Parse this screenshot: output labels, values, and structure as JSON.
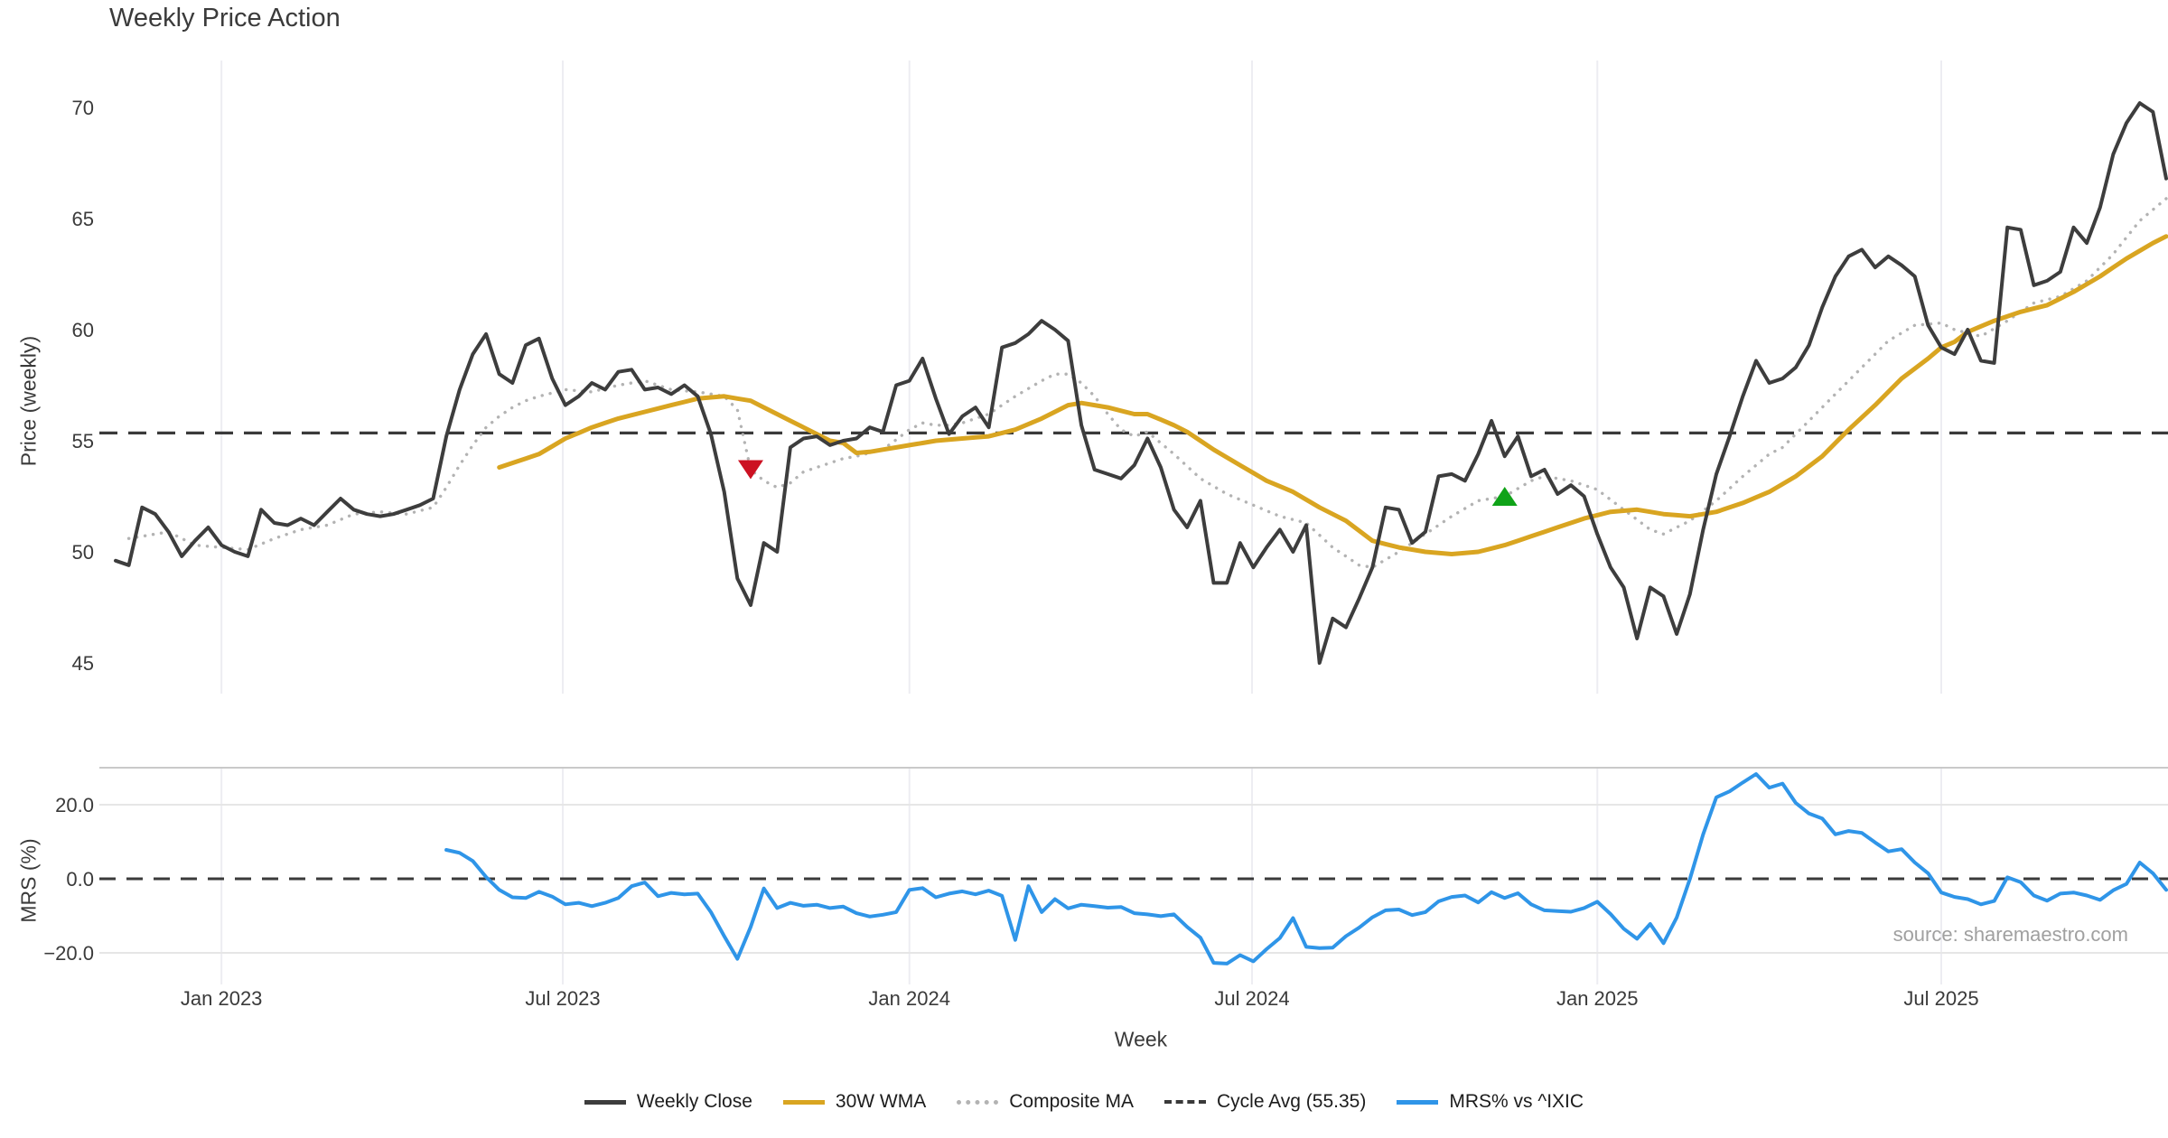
{
  "title": "Weekly Price Action",
  "source": "source: sharemaestro.com",
  "colors": {
    "close": "#3d3d3d",
    "wma": "#d9a521",
    "composite": "#b3b3b3",
    "cycle_avg": "#3a3a3a",
    "mrs": "#2f95e8",
    "sell_marker": "#cc1122",
    "buy_marker": "#0fa318",
    "gridline": "#ededf2",
    "panel_border": "#c9c9c9",
    "hgrid": "#e6e6e6",
    "tick_text": "#3a3a3a"
  },
  "chart_data": {
    "type": "line",
    "xlabel": "Week",
    "x_start_label": "Nov 2022",
    "weeks_total": 156,
    "xticks": [
      {
        "label": "Jan 2023",
        "week": 8
      },
      {
        "label": "Jul 2023",
        "week": 33.8
      },
      {
        "label": "Jan 2024",
        "week": 60
      },
      {
        "label": "Jul 2024",
        "week": 85.9
      },
      {
        "label": "Jan 2025",
        "week": 112
      },
      {
        "label": "Jul 2025",
        "week": 138
      }
    ],
    "panels": [
      {
        "name": "price",
        "ylabel": "Price (weekly)",
        "ylim": [
          43.1,
          72.4
        ],
        "yticks": [
          {
            "label": "45",
            "value": 45
          },
          {
            "label": "50",
            "value": 50
          },
          {
            "label": "55",
            "value": 55
          },
          {
            "label": "60",
            "value": 60
          },
          {
            "label": "65",
            "value": 65
          },
          {
            "label": "70",
            "value": 70
          }
        ],
        "cycle_avg": 55.35,
        "series": [
          {
            "name": "Weekly Close",
            "style": "solid",
            "color_key": "close",
            "start_week": 0,
            "values": [
              49.6,
              49.4,
              52.0,
              51.7,
              50.9,
              49.8,
              50.5,
              51.1,
              50.3,
              50.0,
              49.8,
              51.9,
              51.3,
              51.2,
              51.5,
              51.2,
              51.8,
              52.4,
              51.9,
              51.7,
              51.6,
              51.7,
              51.9,
              52.1,
              52.4,
              55.2,
              57.3,
              58.9,
              59.8,
              58.0,
              57.6,
              59.3,
              59.6,
              57.8,
              56.6,
              57.0,
              57.6,
              57.3,
              58.1,
              58.2,
              57.3,
              57.4,
              57.1,
              57.5,
              57.0,
              55.3,
              52.7,
              48.8,
              47.6,
              50.4,
              50.0,
              54.7,
              55.1,
              55.2,
              54.8,
              55.0,
              55.1,
              55.6,
              55.4,
              57.5,
              57.7,
              58.7,
              56.9,
              55.3,
              56.1,
              56.5,
              55.6,
              59.2,
              59.4,
              59.8,
              60.4,
              60.0,
              59.5,
              55.7,
              53.7,
              53.5,
              53.3,
              53.9,
              55.1,
              53.8,
              51.9,
              51.1,
              52.3,
              48.6,
              48.6,
              50.4,
              49.3,
              50.2,
              51.0,
              50.0,
              51.2,
              45.0,
              47.0,
              46.6,
              47.9,
              49.3,
              52.0,
              51.9,
              50.4,
              50.9,
              53.4,
              53.5,
              53.2,
              54.4,
              55.9,
              54.3,
              55.2,
              53.4,
              53.7,
              52.6,
              53.0,
              52.5,
              50.8,
              49.3,
              48.4,
              46.1,
              48.4,
              48.0,
              46.3,
              48.1,
              51.0,
              53.5,
              55.2,
              57.0,
              58.6,
              57.6,
              57.8,
              58.3,
              59.3,
              61.0,
              62.4,
              63.3,
              63.6,
              62.8,
              63.3,
              62.9,
              62.4,
              60.2,
              59.2,
              58.9,
              60.0,
              58.6,
              58.5,
              64.6,
              64.5,
              62.0,
              62.2,
              62.6,
              64.6,
              63.9,
              65.5,
              67.9,
              69.3,
              70.2,
              69.8,
              66.8
            ]
          },
          {
            "name": "30W WMA",
            "style": "solid",
            "color_key": "wma",
            "start_week": 29,
            "values": [
              53.8,
              54.0,
              54.2,
              54.4,
              54.75,
              55.1,
              55.35,
              55.6,
              55.8,
              56.0,
              56.15,
              56.3,
              56.45,
              56.6,
              56.75,
              56.9,
              56.95,
              57.0,
              56.9,
              56.8,
              56.5,
              56.2,
              55.9,
              55.6,
              55.3,
              55.0,
              54.9,
              54.45,
              54.5,
              54.6,
              54.7,
              54.8,
              54.9,
              55.0,
              55.05,
              55.1,
              55.15,
              55.2,
              55.35,
              55.5,
              55.75,
              56.0,
              56.3,
              56.6,
              56.7,
              56.6,
              56.5,
              56.35,
              56.2,
              56.2,
              55.95,
              55.7,
              55.4,
              55.0,
              54.6,
              54.25,
              53.9,
              53.55,
              53.2,
              52.95,
              52.7,
              52.35,
              52.0,
              51.7,
              51.4,
              50.95,
              50.5,
              50.35,
              50.2,
              50.1,
              50.0,
              49.95,
              49.9,
              49.95,
              50.0,
              50.15,
              50.3,
              50.5,
              50.7,
              50.9,
              51.1,
              51.3,
              51.5,
              51.65,
              51.8,
              51.85,
              51.9,
              51.8,
              51.7,
              51.65,
              51.6,
              51.7,
              51.8,
              52.0,
              52.2,
              52.45,
              52.7,
              53.05,
              53.4,
              53.85,
              54.3,
              54.9,
              55.5,
              56.05,
              56.6,
              57.2,
              57.8,
              58.25,
              58.7,
              59.2,
              59.45,
              59.9,
              60.15,
              60.4,
              60.6,
              60.8,
              60.95,
              61.1,
              61.4,
              61.7,
              62.05,
              62.4,
              62.8,
              63.2,
              63.55,
              63.9,
              64.2
            ]
          },
          {
            "name": "Composite MA",
            "style": "dotted",
            "color_key": "composite",
            "start_week": 1,
            "values": [
              50.6,
              50.7,
              50.8,
              50.9,
              50.6,
              50.3,
              50.25,
              50.2,
              50.15,
              50.1,
              50.35,
              50.6,
              50.8,
              51.0,
              51.1,
              51.2,
              51.45,
              51.7,
              51.75,
              51.8,
              51.75,
              51.7,
              51.85,
              52.0,
              52.9,
              53.9,
              54.8,
              55.6,
              56.1,
              56.5,
              56.8,
              57.0,
              57.15,
              57.3,
              57.25,
              57.2,
              57.35,
              57.5,
              57.6,
              57.7,
              57.5,
              57.3,
              57.25,
              57.2,
              57.1,
              57.0,
              56.4,
              53.7,
              53.2,
              52.9,
              53.1,
              53.6,
              53.8,
              54.0,
              54.2,
              54.3,
              54.45,
              54.6,
              55.05,
              55.5,
              55.8,
              55.7,
              55.7,
              55.8,
              56.0,
              56.2,
              56.6,
              57.0,
              57.35,
              57.7,
              58.0,
              58.0,
              57.6,
              57.0,
              56.2,
              55.5,
              55.2,
              55.4,
              54.9,
              54.4,
              53.85,
              53.3,
              52.95,
              52.6,
              52.35,
              52.1,
              51.85,
              51.6,
              51.45,
              51.3,
              50.75,
              50.2,
              49.8,
              49.4,
              49.3,
              49.65,
              50.0,
              50.4,
              50.8,
              51.2,
              51.6,
              51.95,
              52.3,
              52.4,
              52.5,
              52.85,
              53.2,
              53.4,
              53.3,
              53.2,
              53.0,
              52.8,
              52.35,
              51.9,
              51.45,
              51.0,
              50.8,
              51.1,
              51.4,
              51.85,
              52.3,
              52.85,
              53.4,
              53.9,
              54.4,
              54.7,
              55.3,
              55.9,
              56.5,
              57.1,
              57.7,
              58.3,
              58.9,
              59.5,
              59.85,
              60.2,
              60.25,
              60.3,
              60.0,
              59.85,
              59.7,
              60.05,
              60.4,
              60.8,
              61.2,
              61.35,
              61.5,
              61.85,
              62.2,
              62.8,
              63.4,
              64.15,
              64.9,
              65.4,
              65.9
            ]
          }
        ],
        "markers": [
          {
            "type": "sell-signal",
            "shape": "triangle-down",
            "color_key": "sell_marker",
            "week": 48,
            "value": 53.7
          },
          {
            "type": "buy-signal",
            "shape": "triangle-up",
            "color_key": "buy_marker",
            "week": 105,
            "value": 52.5
          }
        ]
      },
      {
        "name": "mrs",
        "ylabel": "MRS (%)",
        "ylim": [
          -30,
          30
        ],
        "yticks": [
          {
            "label": "20.0",
            "value": 20
          },
          {
            "label": "0.0",
            "value": 0
          },
          {
            "label": "−20.0",
            "value": -20
          }
        ],
        "zero_line": 0,
        "series": [
          {
            "name": "MRS% vs ^IXIC",
            "style": "solid",
            "color_key": "mrs",
            "start_week": 25,
            "values": [
              7.8,
              7.0,
              4.8,
              0.5,
              -3.0,
              -5.0,
              -5.2,
              -3.5,
              -4.8,
              -6.9,
              -6.5,
              -7.4,
              -6.5,
              -5.2,
              -2.0,
              -1.0,
              -4.7,
              -3.8,
              -4.2,
              -4.0,
              -9.0,
              -15.5,
              -21.6,
              -13.0,
              -2.6,
              -7.9,
              -6.5,
              -7.3,
              -7.0,
              -7.9,
              -7.5,
              -9.3,
              -10.2,
              -9.7,
              -9.0,
              -3.0,
              -2.5,
              -5.0,
              -4.0,
              -3.4,
              -4.2,
              -3.2,
              -4.6,
              -16.5,
              -2.0,
              -9.0,
              -5.5,
              -8.0,
              -7.0,
              -7.4,
              -7.8,
              -7.6,
              -9.3,
              -9.6,
              -10.1,
              -9.6,
              -13.0,
              -15.9,
              -22.7,
              -22.9,
              -20.6,
              -22.3,
              -19.0,
              -16.0,
              -10.6,
              -18.4,
              -18.7,
              -18.6,
              -15.5,
              -13.2,
              -10.4,
              -8.5,
              -8.3,
              -9.8,
              -9.0,
              -6.1,
              -4.9,
              -4.5,
              -6.4,
              -3.6,
              -5.2,
              -3.9,
              -6.9,
              -8.5,
              -8.7,
              -8.9,
              -7.9,
              -6.2,
              -9.5,
              -13.5,
              -16.2,
              -12.2,
              -17.4,
              -10.5,
              0.0,
              12.0,
              22.0,
              23.6,
              26.0,
              28.3,
              24.6,
              25.7,
              20.5,
              17.6,
              16.3,
              12.0,
              12.9,
              12.4,
              9.8,
              7.4,
              8.0,
              4.4,
              1.5,
              -3.7,
              -4.9,
              -5.5,
              -6.9,
              -6.0,
              0.4,
              -0.9,
              -4.5,
              -5.9,
              -4.0,
              -3.7,
              -4.5,
              -5.7,
              -3.1,
              -1.4,
              4.4,
              1.5,
              -3.0
            ]
          }
        ]
      }
    ],
    "legend": [
      {
        "label": "Weekly Close",
        "style": "solid",
        "color_key": "close"
      },
      {
        "label": "30W WMA",
        "style": "solid",
        "color_key": "wma"
      },
      {
        "label": "Composite MA",
        "style": "dotted",
        "color_key": "composite"
      },
      {
        "label": "Cycle Avg (55.35)",
        "style": "dashed",
        "color_key": "cycle_avg"
      },
      {
        "label": "MRS% vs ^IXIC",
        "style": "solid",
        "color_key": "mrs"
      }
    ]
  }
}
